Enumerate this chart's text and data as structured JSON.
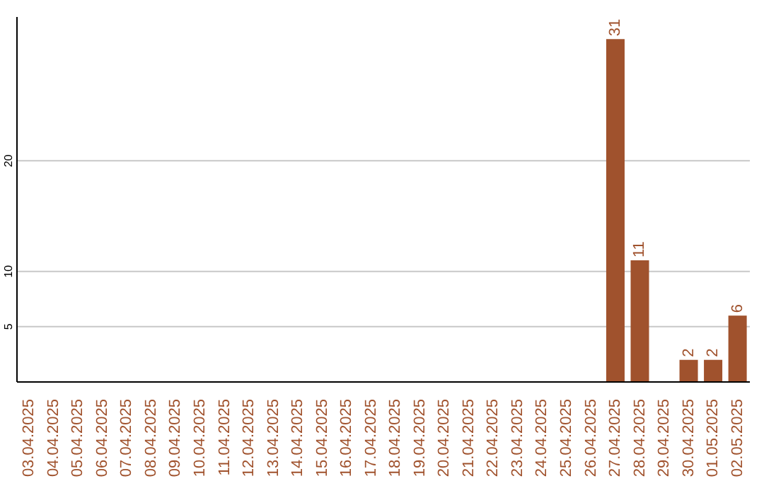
{
  "chart_data": {
    "type": "bar",
    "categories": [
      "03.04.2025",
      "04.04.2025",
      "05.04.2025",
      "06.04.2025",
      "07.04.2025",
      "08.04.2025",
      "09.04.2025",
      "10.04.2025",
      "11.04.2025",
      "12.04.2025",
      "13.04.2025",
      "14.04.2025",
      "15.04.2025",
      "16.04.2025",
      "17.04.2025",
      "18.04.2025",
      "19.04.2025",
      "20.04.2025",
      "21.04.2025",
      "22.04.2025",
      "23.04.2025",
      "24.04.2025",
      "25.04.2025",
      "26.04.2025",
      "27.04.2025",
      "28.04.2025",
      "29.04.2025",
      "30.04.2025",
      "01.05.2025",
      "02.05.2025"
    ],
    "values": [
      0,
      0,
      0,
      0,
      0,
      0,
      0,
      0,
      0,
      0,
      0,
      0,
      0,
      0,
      0,
      0,
      0,
      0,
      0,
      0,
      0,
      0,
      0,
      0,
      31,
      11,
      0,
      2,
      2,
      6
    ],
    "value_labels": [
      null,
      null,
      null,
      null,
      null,
      null,
      null,
      null,
      null,
      null,
      null,
      null,
      null,
      null,
      null,
      null,
      null,
      null,
      null,
      null,
      null,
      null,
      null,
      null,
      "31",
      "11",
      null,
      "2",
      "2",
      "6"
    ],
    "color": "#a0522d",
    "ylim": [
      0,
      33
    ],
    "yticks": [
      5,
      10,
      20
    ],
    "grid": "y"
  }
}
